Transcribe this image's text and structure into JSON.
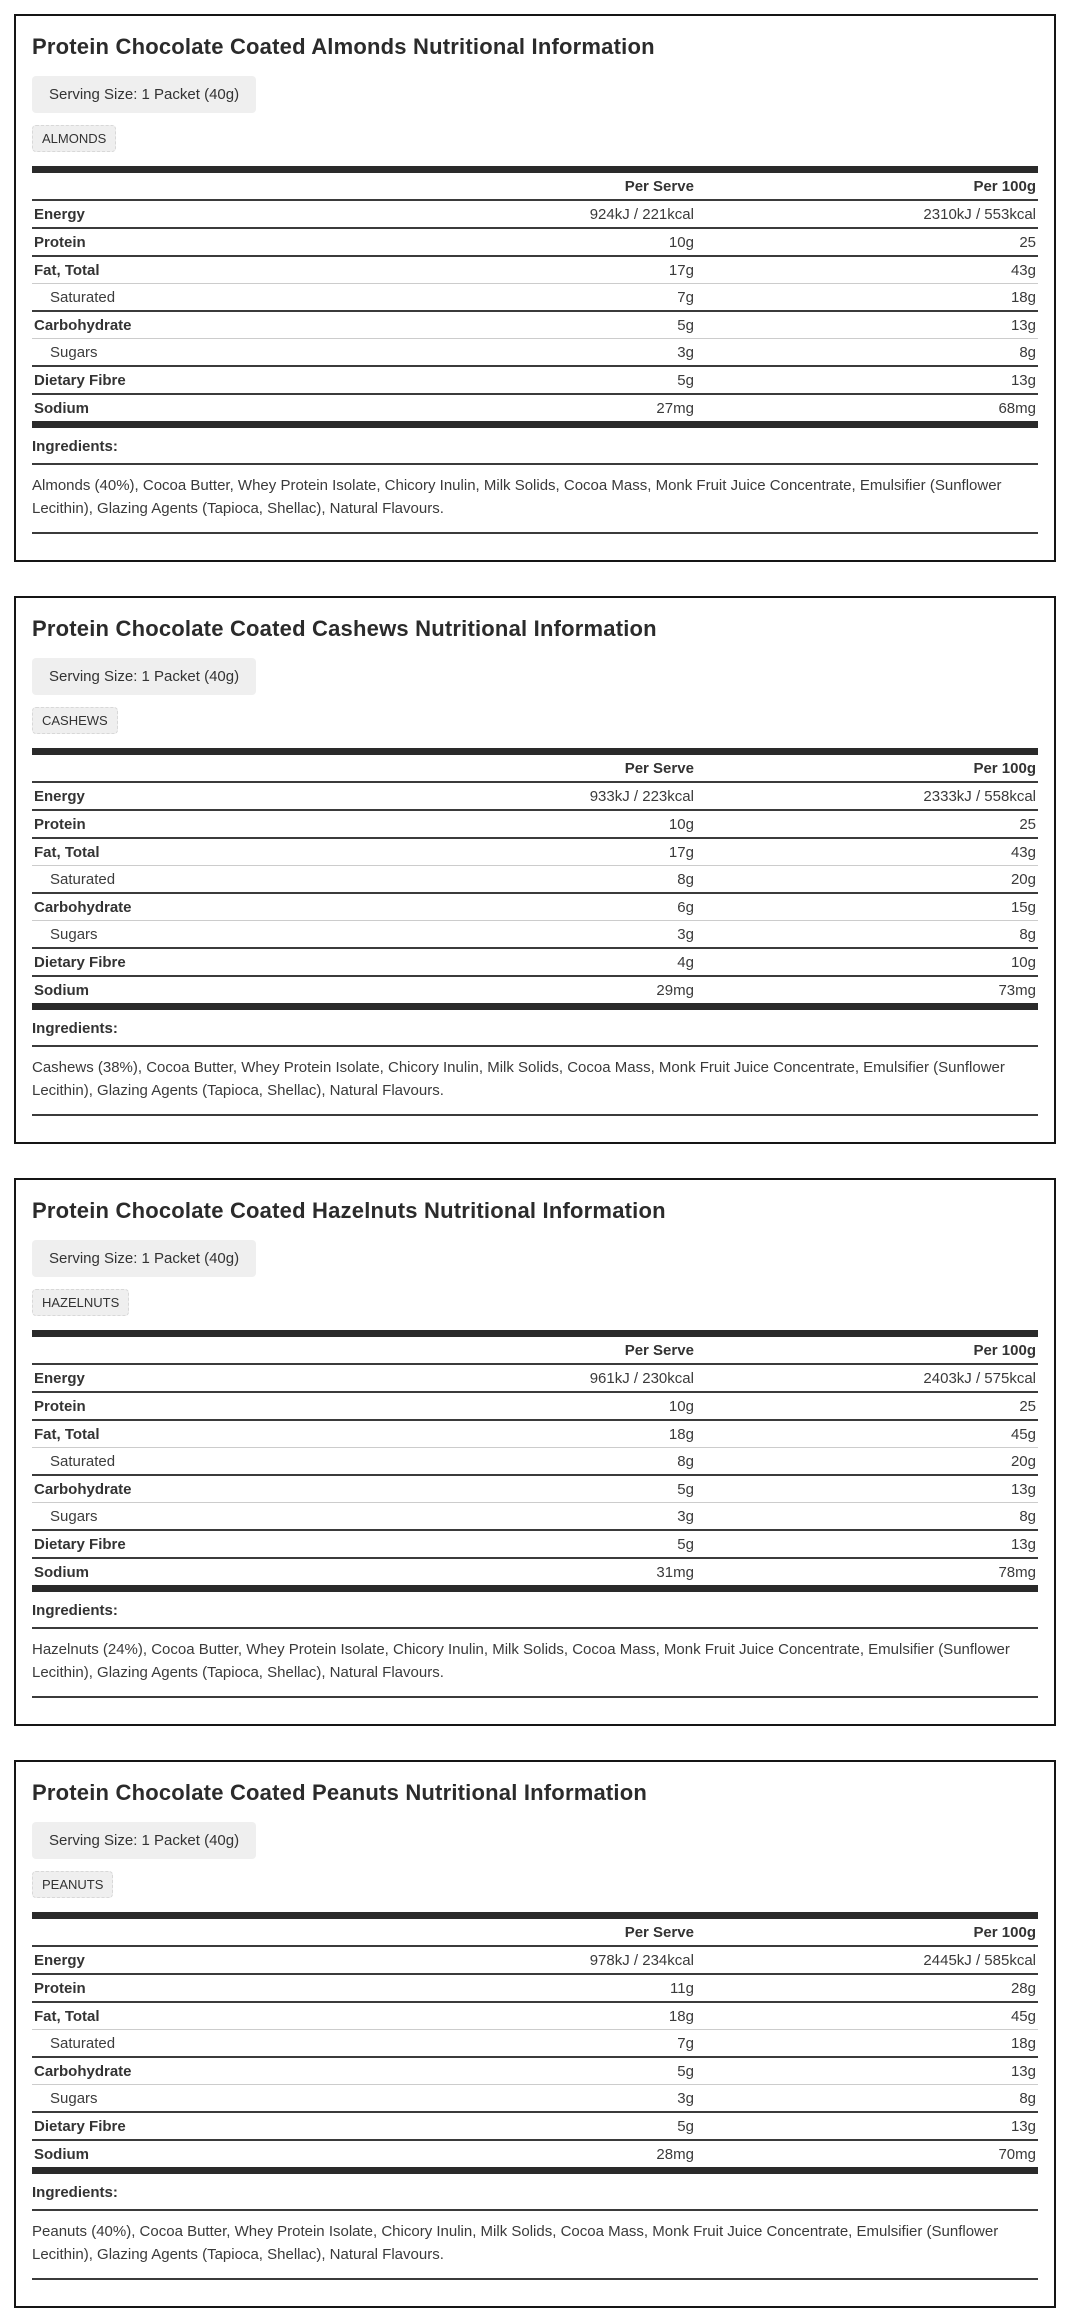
{
  "shared": {
    "serving_size_label": "Serving Size: 1 Packet (40g)",
    "table_headers": {
      "per_serve": "Per Serve",
      "per_100g": "Per 100g"
    },
    "ingredients_label": "Ingredients:",
    "colors": {
      "panel_border": "#151515",
      "badge_background": "#efefef",
      "table_bar": "#2a2a2a",
      "row_divider_dark": "#3b3b3b",
      "row_divider_light": "#cccccc",
      "text": "#333333"
    }
  },
  "panels": [
    {
      "title": "Protein Chocolate Coated Almonds Nutritional Information",
      "tab": "ALMONDS",
      "rows": [
        {
          "label": "Energy",
          "sub": false,
          "per_serve": "924kJ / 221kcal",
          "per_100g": "2310kJ / 553kcal"
        },
        {
          "label": "Protein",
          "sub": false,
          "per_serve": "10g",
          "per_100g": "25"
        },
        {
          "label": "Fat, Total",
          "sub": false,
          "per_serve": "17g",
          "per_100g": "43g"
        },
        {
          "label": "Saturated",
          "sub": true,
          "per_serve": "7g",
          "per_100g": "18g"
        },
        {
          "label": "Carbohydrate",
          "sub": false,
          "per_serve": "5g",
          "per_100g": "13g"
        },
        {
          "label": "Sugars",
          "sub": true,
          "per_serve": "3g",
          "per_100g": "8g"
        },
        {
          "label": "Dietary Fibre",
          "sub": false,
          "per_serve": "5g",
          "per_100g": "13g"
        },
        {
          "label": "Sodium",
          "sub": false,
          "per_serve": "27mg",
          "per_100g": "68mg"
        }
      ],
      "ingredients": "Almonds (40%), Cocoa Butter, Whey Protein Isolate, Chicory Inulin, Milk Solids, Cocoa Mass, Monk Fruit Juice Concentrate, Emulsifier (Sunflower Lecithin), Glazing Agents (Tapioca, Shellac), Natural Flavours."
    },
    {
      "title": "Protein Chocolate Coated Cashews Nutritional Information",
      "tab": "CASHEWS",
      "rows": [
        {
          "label": "Energy",
          "sub": false,
          "per_serve": "933kJ / 223kcal",
          "per_100g": "2333kJ / 558kcal"
        },
        {
          "label": "Protein",
          "sub": false,
          "per_serve": "10g",
          "per_100g": "25"
        },
        {
          "label": "Fat, Total",
          "sub": false,
          "per_serve": "17g",
          "per_100g": "43g"
        },
        {
          "label": "Saturated",
          "sub": true,
          "per_serve": "8g",
          "per_100g": "20g"
        },
        {
          "label": "Carbohydrate",
          "sub": false,
          "per_serve": "6g",
          "per_100g": "15g"
        },
        {
          "label": "Sugars",
          "sub": true,
          "per_serve": "3g",
          "per_100g": "8g"
        },
        {
          "label": "Dietary Fibre",
          "sub": false,
          "per_serve": "4g",
          "per_100g": "10g"
        },
        {
          "label": "Sodium",
          "sub": false,
          "per_serve": "29mg",
          "per_100g": "73mg"
        }
      ],
      "ingredients": "Cashews (38%), Cocoa Butter, Whey Protein Isolate, Chicory Inulin, Milk Solids, Cocoa Mass, Monk Fruit Juice Concentrate, Emulsifier (Sunflower Lecithin), Glazing Agents (Tapioca, Shellac), Natural Flavours."
    },
    {
      "title": "Protein Chocolate Coated Hazelnuts Nutritional Information",
      "tab": "HAZELNUTS",
      "rows": [
        {
          "label": "Energy",
          "sub": false,
          "per_serve": "961kJ / 230kcal",
          "per_100g": "2403kJ / 575kcal"
        },
        {
          "label": "Protein",
          "sub": false,
          "per_serve": "10g",
          "per_100g": "25"
        },
        {
          "label": "Fat, Total",
          "sub": false,
          "per_serve": "18g",
          "per_100g": "45g"
        },
        {
          "label": "Saturated",
          "sub": true,
          "per_serve": "8g",
          "per_100g": "20g"
        },
        {
          "label": "Carbohydrate",
          "sub": false,
          "per_serve": "5g",
          "per_100g": "13g"
        },
        {
          "label": "Sugars",
          "sub": true,
          "per_serve": "3g",
          "per_100g": "8g"
        },
        {
          "label": "Dietary Fibre",
          "sub": false,
          "per_serve": "5g",
          "per_100g": "13g"
        },
        {
          "label": "Sodium",
          "sub": false,
          "per_serve": "31mg",
          "per_100g": "78mg"
        }
      ],
      "ingredients": "Hazelnuts (24%), Cocoa Butter, Whey Protein Isolate, Chicory Inulin, Milk Solids, Cocoa Mass, Monk Fruit Juice Concentrate, Emulsifier (Sunflower Lecithin), Glazing Agents (Tapioca, Shellac), Natural Flavours."
    },
    {
      "title": "Protein Chocolate Coated Peanuts Nutritional Information",
      "tab": "PEANUTS",
      "rows": [
        {
          "label": "Energy",
          "sub": false,
          "per_serve": "978kJ / 234kcal",
          "per_100g": "2445kJ / 585kcal"
        },
        {
          "label": "Protein",
          "sub": false,
          "per_serve": "11g",
          "per_100g": "28g"
        },
        {
          "label": "Fat, Total",
          "sub": false,
          "per_serve": "18g",
          "per_100g": "45g"
        },
        {
          "label": "Saturated",
          "sub": true,
          "per_serve": "7g",
          "per_100g": "18g"
        },
        {
          "label": "Carbohydrate",
          "sub": false,
          "per_serve": "5g",
          "per_100g": "13g"
        },
        {
          "label": "Sugars",
          "sub": true,
          "per_serve": "3g",
          "per_100g": "8g"
        },
        {
          "label": "Dietary Fibre",
          "sub": false,
          "per_serve": "5g",
          "per_100g": "13g"
        },
        {
          "label": "Sodium",
          "sub": false,
          "per_serve": "28mg",
          "per_100g": "70mg"
        }
      ],
      "ingredients": "Peanuts (40%), Cocoa Butter, Whey Protein Isolate, Chicory Inulin, Milk Solids, Cocoa Mass, Monk Fruit Juice Concentrate, Emulsifier (Sunflower Lecithin), Glazing Agents (Tapioca, Shellac), Natural Flavours."
    }
  ]
}
